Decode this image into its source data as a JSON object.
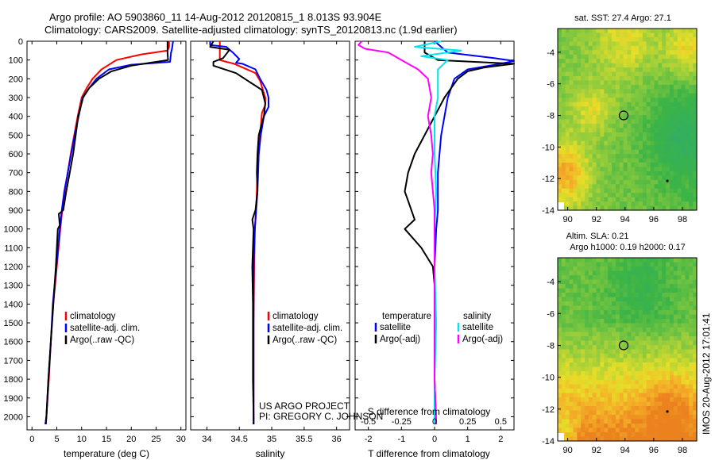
{
  "header": {
    "line1": "Argo profile: AO 5903860_11 14-Aug-2012 20120815_1 8.013S 93.904E",
    "line2": "Climatology: CARS2009. Satellite-adjusted climatology: synTS_20120813.nc (1.9d earlier)"
  },
  "credits": {
    "project": "US ARGO PROJECT",
    "pi": "PI: GREGORY C. JOHNSON"
  },
  "timestamp": "IMOS 20-Aug-2012 17:01:41",
  "colors": {
    "climatology": "#ff0000",
    "satellite": "#0000ff",
    "argo": "#000000",
    "argo_s": "#ff00ff",
    "sat_s": "#00e5ee",
    "map_green": "#3cb33c",
    "map_orange": "#f4a020",
    "map_yellow": "#e8e020"
  },
  "chart_data": [
    {
      "type": "line",
      "id": "temperature",
      "xlabel": "temperature (deg C)",
      "ylabel": "",
      "xlim": [
        -1,
        31
      ],
      "ylim": [
        2070,
        0
      ],
      "xticks": [
        0,
        5,
        10,
        15,
        20,
        25,
        30
      ],
      "yticks": [
        0,
        100,
        200,
        300,
        400,
        500,
        600,
        700,
        800,
        900,
        1000,
        1100,
        1200,
        1300,
        1400,
        1500,
        1600,
        1700,
        1800,
        1900,
        2000
      ],
      "legend": [
        "climatology",
        "satellite-adj. clim.",
        "Argo(..raw -QC)"
      ],
      "series": [
        {
          "name": "climatology",
          "color": "#ff0000",
          "points": [
            [
              27.6,
              0
            ],
            [
              27.6,
              30
            ],
            [
              27.3,
              50
            ],
            [
              22,
              70
            ],
            [
              17,
              100
            ],
            [
              14,
              150
            ],
            [
              12.2,
              200
            ],
            [
              11,
              250
            ],
            [
              10,
              300
            ],
            [
              9.2,
              400
            ],
            [
              8.5,
              500
            ],
            [
              7.8,
              600
            ],
            [
              7.2,
              700
            ],
            [
              6.6,
              800
            ],
            [
              6.1,
              900
            ],
            [
              5.7,
              1000
            ],
            [
              5,
              1200
            ],
            [
              4.3,
              1400
            ],
            [
              3.8,
              1600
            ],
            [
              3.4,
              1800
            ],
            [
              2.9,
              2000
            ],
            [
              2.7,
              2040
            ]
          ]
        },
        {
          "name": "satellite-adj. clim.",
          "color": "#0000ff",
          "points": [
            [
              28.4,
              0
            ],
            [
              28.2,
              40
            ],
            [
              28,
              60
            ],
            [
              27.9,
              90
            ],
            [
              27.8,
              110
            ],
            [
              20,
              125
            ],
            [
              15.5,
              150
            ],
            [
              13,
              200
            ],
            [
              11.5,
              250
            ],
            [
              10.2,
              300
            ],
            [
              9.4,
              400
            ],
            [
              8.6,
              500
            ],
            [
              7.9,
              600
            ],
            [
              7.2,
              700
            ],
            [
              6.5,
              800
            ],
            [
              6,
              900
            ],
            [
              5.6,
              1000
            ],
            [
              4.9,
              1200
            ],
            [
              4.2,
              1400
            ],
            [
              3.8,
              1600
            ],
            [
              3.3,
              1800
            ],
            [
              2.9,
              2000
            ],
            [
              2.7,
              2040
            ]
          ]
        },
        {
          "name": "Argo(..raw -QC)",
          "color": "#000000",
          "points": [
            [
              27.3,
              0
            ],
            [
              27.3,
              60
            ],
            [
              27.4,
              100
            ],
            [
              20,
              130
            ],
            [
              16,
              160
            ],
            [
              13.5,
              200
            ],
            [
              11.5,
              250
            ],
            [
              10.3,
              300
            ],
            [
              9.3,
              400
            ],
            [
              8.8,
              500
            ],
            [
              8.3,
              600
            ],
            [
              7.6,
              700
            ],
            [
              6.9,
              800
            ],
            [
              6.3,
              900
            ],
            [
              5.4,
              920
            ],
            [
              5.6,
              980
            ],
            [
              5.2,
              1000
            ],
            [
              4.8,
              1200
            ],
            [
              4.3,
              1400
            ],
            [
              3.8,
              1600
            ],
            [
              3.3,
              1800
            ],
            [
              2.9,
              2000
            ],
            [
              2.8,
              2040
            ]
          ]
        }
      ]
    },
    {
      "type": "line",
      "id": "salinity",
      "xlabel": "salinity",
      "ylabel": "",
      "xlim": [
        33.75,
        36.2
      ],
      "ylim": [
        2070,
        0
      ],
      "xticks": [
        34,
        34.5,
        35,
        35.5,
        36
      ],
      "legend": [
        "climatology",
        "satellite-adj. clim.",
        "Argo(..raw -QC)"
      ],
      "series": [
        {
          "name": "climatology",
          "color": "#ff0000",
          "points": [
            [
              34.2,
              0
            ],
            [
              34.2,
              100
            ],
            [
              34.3,
              110
            ],
            [
              34.42,
              120
            ],
            [
              34.55,
              140
            ],
            [
              34.75,
              170
            ],
            [
              34.82,
              210
            ],
            [
              34.9,
              300
            ],
            [
              34.9,
              340
            ],
            [
              34.85,
              380
            ],
            [
              34.82,
              500
            ],
            [
              34.78,
              700
            ],
            [
              34.76,
              900
            ],
            [
              34.74,
              1000
            ],
            [
              34.73,
              1200
            ],
            [
              34.72,
              1500
            ],
            [
              34.72,
              1800
            ],
            [
              34.72,
              2040
            ]
          ]
        },
        {
          "name": "satellite-adj. clim.",
          "color": "#0000ff",
          "points": [
            [
              34.05,
              0
            ],
            [
              34.05,
              20
            ],
            [
              34.3,
              30
            ],
            [
              34.4,
              60
            ],
            [
              34.5,
              95
            ],
            [
              34.45,
              115
            ],
            [
              34.55,
              120
            ],
            [
              34.75,
              150
            ],
            [
              34.82,
              200
            ],
            [
              34.92,
              260
            ],
            [
              34.95,
              300
            ],
            [
              34.95,
              350
            ],
            [
              34.88,
              400
            ],
            [
              34.83,
              500
            ],
            [
              34.8,
              600
            ],
            [
              34.78,
              800
            ],
            [
              34.76,
              900
            ],
            [
              34.74,
              1000
            ],
            [
              34.72,
              1200
            ],
            [
              34.72,
              1500
            ],
            [
              34.72,
              1800
            ],
            [
              34.72,
              2040
            ]
          ]
        },
        {
          "name": "Argo(..raw -QC)",
          "color": "#000000",
          "points": [
            [
              34.1,
              0
            ],
            [
              34.05,
              30
            ],
            [
              34.35,
              45
            ],
            [
              34.25,
              90
            ],
            [
              34.1,
              110
            ],
            [
              34.1,
              130
            ],
            [
              34.45,
              170
            ],
            [
              34.85,
              260
            ],
            [
              34.9,
              330
            ],
            [
              34.88,
              400
            ],
            [
              34.8,
              500
            ],
            [
              34.78,
              600
            ],
            [
              34.77,
              700
            ],
            [
              34.78,
              800
            ],
            [
              34.75,
              900
            ],
            [
              34.7,
              950
            ],
            [
              34.72,
              1000
            ],
            [
              34.71,
              1100
            ],
            [
              34.7,
              1200
            ],
            [
              34.71,
              1400
            ],
            [
              34.71,
              1600
            ],
            [
              34.71,
              1800
            ],
            [
              34.72,
              2000
            ],
            [
              34.72,
              2040
            ]
          ]
        }
      ]
    },
    {
      "type": "line",
      "id": "difference",
      "xlabel": "T difference from climatology",
      "xlabel_top": "S difference from climatology",
      "xlim": [
        -2.4,
        2.4
      ],
      "ylim": [
        2070,
        0
      ],
      "xticks": [
        -2,
        -1,
        0,
        1,
        2
      ],
      "xticks_s_labels": [
        "-0.5",
        "-0.25",
        "0",
        "0.25",
        "0.5"
      ],
      "xticks_s_pos": [
        -2,
        -1,
        0,
        1,
        2
      ],
      "legend_t_title": "temperature",
      "legend_s_title": "salinity",
      "legend": [
        "satellite",
        "Argo(-adj)",
        "satellite",
        "Argo(-adj)"
      ],
      "series": [
        {
          "name": "T satellite",
          "color": "#0000ff",
          "points": [
            [
              0,
              0
            ],
            [
              0.4,
              60
            ],
            [
              1.8,
              90
            ],
            [
              2.4,
              105
            ],
            [
              2,
              120
            ],
            [
              1,
              150
            ],
            [
              0.6,
              200
            ],
            [
              0.4,
              300
            ],
            [
              0.3,
              400
            ],
            [
              0.2,
              500
            ],
            [
              0.1,
              700
            ],
            [
              0.1,
              900
            ],
            [
              0.05,
              1000
            ],
            [
              0,
              1200
            ],
            [
              0,
              1500
            ],
            [
              0,
              1800
            ],
            [
              0,
              2040
            ]
          ]
        },
        {
          "name": "T Argo(-adj)",
          "color": "#000000",
          "points": [
            [
              -0.3,
              0
            ],
            [
              -0.3,
              60
            ],
            [
              0.1,
              100
            ],
            [
              2.4,
              120
            ],
            [
              1.5,
              140
            ],
            [
              1,
              160
            ],
            [
              0.7,
              200
            ],
            [
              0.3,
              300
            ],
            [
              0,
              400
            ],
            [
              -0.3,
              500
            ],
            [
              -0.6,
              600
            ],
            [
              -0.8,
              700
            ],
            [
              -0.9,
              800
            ],
            [
              -0.8,
              850
            ],
            [
              -0.6,
              950
            ],
            [
              -0.9,
              1000
            ],
            [
              -0.4,
              1100
            ],
            [
              -0.05,
              1200
            ],
            [
              0,
              1300
            ],
            [
              0,
              1500
            ],
            [
              0,
              1800
            ],
            [
              0.05,
              2040
            ]
          ]
        },
        {
          "name": "S satellite",
          "color": "#00e5ee",
          "points": [
            [
              0.2,
              0
            ],
            [
              -0.6,
              30
            ],
            [
              0.8,
              50
            ],
            [
              -0.4,
              80
            ],
            [
              0.4,
              100
            ],
            [
              0.1,
              150
            ],
            [
              0.1,
              300
            ],
            [
              0,
              400
            ],
            [
              0,
              600
            ],
            [
              0.05,
              800
            ],
            [
              0,
              1000
            ],
            [
              0,
              1200
            ],
            [
              0.05,
              1500
            ],
            [
              0,
              1800
            ],
            [
              0,
              2040
            ]
          ]
        },
        {
          "name": "S Argo(-adj)",
          "color": "#ff00ff",
          "points": [
            [
              -2.2,
              0
            ],
            [
              -2.3,
              20
            ],
            [
              -2.1,
              40
            ],
            [
              -1.4,
              60
            ],
            [
              -1.2,
              80
            ],
            [
              -1,
              100
            ],
            [
              -0.5,
              150
            ],
            [
              -0.2,
              200
            ],
            [
              -0.1,
              300
            ],
            [
              -0.2,
              400
            ],
            [
              -0.1,
              500
            ],
            [
              -0.05,
              600
            ],
            [
              -0.1,
              700
            ],
            [
              -0.05,
              800
            ],
            [
              0,
              900
            ],
            [
              0,
              1200
            ],
            [
              0,
              1500
            ],
            [
              0,
              1800
            ],
            [
              0.05,
              2040
            ]
          ]
        }
      ]
    },
    {
      "type": "heatmap",
      "id": "sst_map",
      "title": "sat. SST: 27.4  Argo: 27.1",
      "xlim": [
        89.3,
        99
      ],
      "ylim": [
        -14,
        -2.5
      ],
      "xticks": [
        90,
        92,
        94,
        96,
        98
      ],
      "yticks": [
        -4,
        -6,
        -8,
        -10,
        -12,
        -14
      ],
      "marker": [
        93.9,
        -8.0
      ]
    },
    {
      "type": "heatmap",
      "id": "sla_map",
      "title": "Altim. SLA: 0.21",
      "subtitle": "Argo h1000: 0.19 h2000: 0.17",
      "xlim": [
        89.3,
        99
      ],
      "ylim": [
        -14,
        -2.5
      ],
      "xticks": [
        90,
        92,
        94,
        96,
        98
      ],
      "yticks": [
        -4,
        -6,
        -8,
        -10,
        -12,
        -14
      ],
      "marker": [
        93.9,
        -8.0
      ]
    }
  ]
}
